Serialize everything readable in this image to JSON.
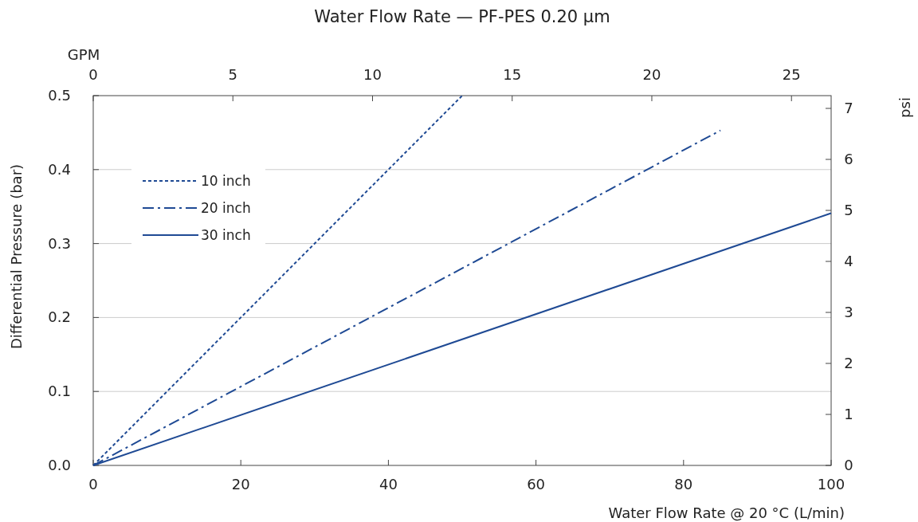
{
  "chart_data": {
    "type": "line",
    "title": "Water Flow Rate — PF-PES 0.20 µm",
    "xlabel": "Water Flow Rate @ 20 °C (L/min)",
    "ylabel": "Differential Pressure (bar)",
    "y2label": "psi",
    "x2label": "GPM",
    "xlim": [
      0,
      100
    ],
    "xticks": [
      0,
      20,
      40,
      60,
      80,
      100
    ],
    "ylim": [
      0,
      0.5
    ],
    "yticks": [
      {
        "value": 0,
        "label": "0.0"
      },
      0.1,
      0.2,
      0.3,
      0.4,
      0.5
    ],
    "x2lim": [
      0,
      26.42
    ],
    "x2ticks": [
      0,
      5,
      10,
      15,
      20,
      25
    ],
    "y2lim": [
      0,
      7.25
    ],
    "y2ticks": [
      0,
      1,
      2,
      3,
      4,
      5,
      6,
      7
    ],
    "grid": "y",
    "legend": "top left",
    "series": [
      {
        "name": "10 inch",
        "color": "#1f4a94",
        "line_style": "dotted",
        "x": [
          0,
          50
        ],
        "values": [
          0,
          0.5
        ]
      },
      {
        "name": "20 inch",
        "color": "#1f4a94",
        "line_style": "dashdot",
        "x": [
          0,
          85
        ],
        "values": [
          0,
          0.453
        ]
      },
      {
        "name": "30 inch",
        "color": "#1f4a94",
        "line_style": "solid",
        "x": [
          0,
          100
        ],
        "values": [
          0,
          0.341
        ]
      }
    ]
  }
}
